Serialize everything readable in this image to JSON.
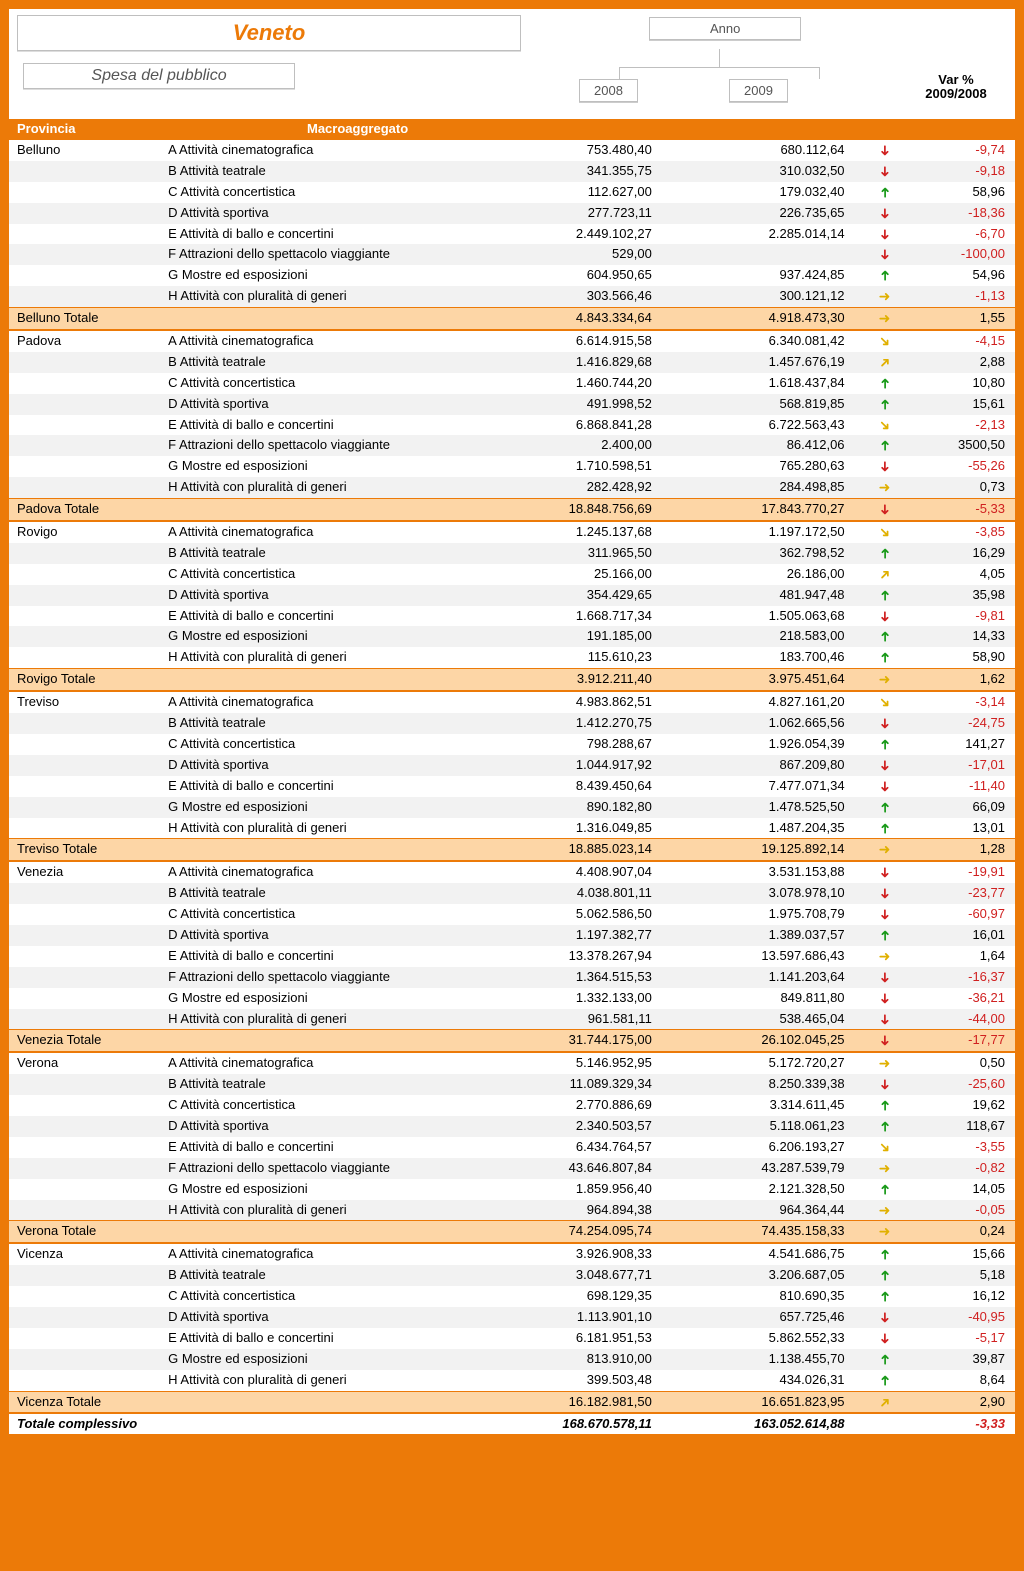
{
  "header": {
    "title": "Veneto",
    "subtitle": "Spesa del pubblico",
    "tree_root": "Anno",
    "year1": "2008",
    "year2": "2009",
    "var_header_l1": "Var %",
    "var_header_l2": "2009/2008",
    "col_provincia": "Provincia",
    "col_macro": "Macroaggregato"
  },
  "colors": {
    "accent": "#ec7a08",
    "subtotal_bg": "#fdd6a6",
    "zebra_bg": "#f2f2f2",
    "neg": "#d02020",
    "up": "#1a9a1a",
    "flat": "#e0b000"
  },
  "groups": [
    {
      "provincia": "Belluno",
      "rows": [
        {
          "macro": "A Attività cinematografica",
          "y08": "753.480,40",
          "y09": "680.112,64",
          "var": "-9,74",
          "dir": "down"
        },
        {
          "macro": "B Attività teatrale",
          "y08": "341.355,75",
          "y09": "310.032,50",
          "var": "-9,18",
          "dir": "down"
        },
        {
          "macro": "C Attività concertistica",
          "y08": "112.627,00",
          "y09": "179.032,40",
          "var": "58,96",
          "dir": "up"
        },
        {
          "macro": "D Attività sportiva",
          "y08": "277.723,11",
          "y09": "226.735,65",
          "var": "-18,36",
          "dir": "down"
        },
        {
          "macro": "E Attività di ballo e concertini",
          "y08": "2.449.102,27",
          "y09": "2.285.014,14",
          "var": "-6,70",
          "dir": "down"
        },
        {
          "macro": "F Attrazioni dello spettacolo viaggiante",
          "y08": "529,00",
          "y09": "",
          "var": "-100,00",
          "dir": "down"
        },
        {
          "macro": "G Mostre ed esposizioni",
          "y08": "604.950,65",
          "y09": "937.424,85",
          "var": "54,96",
          "dir": "up"
        },
        {
          "macro": "H Attività con pluralità di generi",
          "y08": "303.566,46",
          "y09": "300.121,12",
          "var": "-1,13",
          "dir": "flat"
        }
      ],
      "total": {
        "label": "Belluno Totale",
        "y08": "4.843.334,64",
        "y09": "4.918.473,30",
        "var": "1,55",
        "dir": "flat"
      }
    },
    {
      "provincia": "Padova",
      "rows": [
        {
          "macro": "A Attività cinematografica",
          "y08": "6.614.915,58",
          "y09": "6.340.081,42",
          "var": "-4,15",
          "dir": "downslight"
        },
        {
          "macro": "B Attività teatrale",
          "y08": "1.416.829,68",
          "y09": "1.457.676,19",
          "var": "2,88",
          "dir": "upslight"
        },
        {
          "macro": "C Attività concertistica",
          "y08": "1.460.744,20",
          "y09": "1.618.437,84",
          "var": "10,80",
          "dir": "up"
        },
        {
          "macro": "D Attività sportiva",
          "y08": "491.998,52",
          "y09": "568.819,85",
          "var": "15,61",
          "dir": "up"
        },
        {
          "macro": "E Attività di ballo e concertini",
          "y08": "6.868.841,28",
          "y09": "6.722.563,43",
          "var": "-2,13",
          "dir": "downslight"
        },
        {
          "macro": "F Attrazioni dello spettacolo viaggiante",
          "y08": "2.400,00",
          "y09": "86.412,06",
          "var": "3500,50",
          "dir": "up"
        },
        {
          "macro": "G Mostre ed esposizioni",
          "y08": "1.710.598,51",
          "y09": "765.280,63",
          "var": "-55,26",
          "dir": "down"
        },
        {
          "macro": "H Attività con pluralità di generi",
          "y08": "282.428,92",
          "y09": "284.498,85",
          "var": "0,73",
          "dir": "flat"
        }
      ],
      "total": {
        "label": "Padova Totale",
        "y08": "18.848.756,69",
        "y09": "17.843.770,27",
        "var": "-5,33",
        "dir": "down"
      }
    },
    {
      "provincia": "Rovigo",
      "rows": [
        {
          "macro": "A Attività cinematografica",
          "y08": "1.245.137,68",
          "y09": "1.197.172,50",
          "var": "-3,85",
          "dir": "downslight"
        },
        {
          "macro": "B Attività teatrale",
          "y08": "311.965,50",
          "y09": "362.798,52",
          "var": "16,29",
          "dir": "up"
        },
        {
          "macro": "C Attività concertistica",
          "y08": "25.166,00",
          "y09": "26.186,00",
          "var": "4,05",
          "dir": "upslight"
        },
        {
          "macro": "D Attività sportiva",
          "y08": "354.429,65",
          "y09": "481.947,48",
          "var": "35,98",
          "dir": "up"
        },
        {
          "macro": "E Attività di ballo e concertini",
          "y08": "1.668.717,34",
          "y09": "1.505.063,68",
          "var": "-9,81",
          "dir": "down"
        },
        {
          "macro": "G Mostre ed esposizioni",
          "y08": "191.185,00",
          "y09": "218.583,00",
          "var": "14,33",
          "dir": "up"
        },
        {
          "macro": "H Attività con pluralità di generi",
          "y08": "115.610,23",
          "y09": "183.700,46",
          "var": "58,90",
          "dir": "up"
        }
      ],
      "total": {
        "label": "Rovigo Totale",
        "y08": "3.912.211,40",
        "y09": "3.975.451,64",
        "var": "1,62",
        "dir": "flat"
      }
    },
    {
      "provincia": "Treviso",
      "rows": [
        {
          "macro": "A Attività cinematografica",
          "y08": "4.983.862,51",
          "y09": "4.827.161,20",
          "var": "-3,14",
          "dir": "downslight"
        },
        {
          "macro": "B Attività teatrale",
          "y08": "1.412.270,75",
          "y09": "1.062.665,56",
          "var": "-24,75",
          "dir": "down"
        },
        {
          "macro": "C Attività concertistica",
          "y08": "798.288,67",
          "y09": "1.926.054,39",
          "var": "141,27",
          "dir": "up"
        },
        {
          "macro": "D Attività sportiva",
          "y08": "1.044.917,92",
          "y09": "867.209,80",
          "var": "-17,01",
          "dir": "down"
        },
        {
          "macro": "E Attività di ballo e concertini",
          "y08": "8.439.450,64",
          "y09": "7.477.071,34",
          "var": "-11,40",
          "dir": "down"
        },
        {
          "macro": "G Mostre ed esposizioni",
          "y08": "890.182,80",
          "y09": "1.478.525,50",
          "var": "66,09",
          "dir": "up"
        },
        {
          "macro": "H Attività con pluralità di generi",
          "y08": "1.316.049,85",
          "y09": "1.487.204,35",
          "var": "13,01",
          "dir": "up"
        }
      ],
      "total": {
        "label": "Treviso Totale",
        "y08": "18.885.023,14",
        "y09": "19.125.892,14",
        "var": "1,28",
        "dir": "flat"
      }
    },
    {
      "provincia": "Venezia",
      "rows": [
        {
          "macro": "A Attività cinematografica",
          "y08": "4.408.907,04",
          "y09": "3.531.153,88",
          "var": "-19,91",
          "dir": "down"
        },
        {
          "macro": "B Attività teatrale",
          "y08": "4.038.801,11",
          "y09": "3.078.978,10",
          "var": "-23,77",
          "dir": "down"
        },
        {
          "macro": "C Attività concertistica",
          "y08": "5.062.586,50",
          "y09": "1.975.708,79",
          "var": "-60,97",
          "dir": "down"
        },
        {
          "macro": "D Attività sportiva",
          "y08": "1.197.382,77",
          "y09": "1.389.037,57",
          "var": "16,01",
          "dir": "up"
        },
        {
          "macro": "E Attività di ballo e concertini",
          "y08": "13.378.267,94",
          "y09": "13.597.686,43",
          "var": "1,64",
          "dir": "flat"
        },
        {
          "macro": "F Attrazioni dello spettacolo viaggiante",
          "y08": "1.364.515,53",
          "y09": "1.141.203,64",
          "var": "-16,37",
          "dir": "down"
        },
        {
          "macro": "G Mostre ed esposizioni",
          "y08": "1.332.133,00",
          "y09": "849.811,80",
          "var": "-36,21",
          "dir": "down"
        },
        {
          "macro": "H Attività con pluralità di generi",
          "y08": "961.581,11",
          "y09": "538.465,04",
          "var": "-44,00",
          "dir": "down"
        }
      ],
      "total": {
        "label": "Venezia Totale",
        "y08": "31.744.175,00",
        "y09": "26.102.045,25",
        "var": "-17,77",
        "dir": "down"
      }
    },
    {
      "provincia": "Verona",
      "rows": [
        {
          "macro": "A Attività cinematografica",
          "y08": "5.146.952,95",
          "y09": "5.172.720,27",
          "var": "0,50",
          "dir": "flat"
        },
        {
          "macro": "B Attività teatrale",
          "y08": "11.089.329,34",
          "y09": "8.250.339,38",
          "var": "-25,60",
          "dir": "down"
        },
        {
          "macro": "C Attività concertistica",
          "y08": "2.770.886,69",
          "y09": "3.314.611,45",
          "var": "19,62",
          "dir": "up"
        },
        {
          "macro": "D Attività sportiva",
          "y08": "2.340.503,57",
          "y09": "5.118.061,23",
          "var": "118,67",
          "dir": "up"
        },
        {
          "macro": "E Attività di ballo e concertini",
          "y08": "6.434.764,57",
          "y09": "6.206.193,27",
          "var": "-3,55",
          "dir": "downslight"
        },
        {
          "macro": "F Attrazioni dello spettacolo viaggiante",
          "y08": "43.646.807,84",
          "y09": "43.287.539,79",
          "var": "-0,82",
          "dir": "flat"
        },
        {
          "macro": "G Mostre ed esposizioni",
          "y08": "1.859.956,40",
          "y09": "2.121.328,50",
          "var": "14,05",
          "dir": "up"
        },
        {
          "macro": "H Attività con pluralità di generi",
          "y08": "964.894,38",
          "y09": "964.364,44",
          "var": "-0,05",
          "dir": "flat"
        }
      ],
      "total": {
        "label": "Verona Totale",
        "y08": "74.254.095,74",
        "y09": "74.435.158,33",
        "var": "0,24",
        "dir": "flat"
      }
    },
    {
      "provincia": "Vicenza",
      "rows": [
        {
          "macro": "A Attività cinematografica",
          "y08": "3.926.908,33",
          "y09": "4.541.686,75",
          "var": "15,66",
          "dir": "up"
        },
        {
          "macro": "B Attività teatrale",
          "y08": "3.048.677,71",
          "y09": "3.206.687,05",
          "var": "5,18",
          "dir": "up"
        },
        {
          "macro": "C Attività concertistica",
          "y08": "698.129,35",
          "y09": "810.690,35",
          "var": "16,12",
          "dir": "up"
        },
        {
          "macro": "D Attività sportiva",
          "y08": "1.113.901,10",
          "y09": "657.725,46",
          "var": "-40,95",
          "dir": "down"
        },
        {
          "macro": "E Attività di ballo e concertini",
          "y08": "6.181.951,53",
          "y09": "5.862.552,33",
          "var": "-5,17",
          "dir": "down"
        },
        {
          "macro": "G Mostre ed esposizioni",
          "y08": "813.910,00",
          "y09": "1.138.455,70",
          "var": "39,87",
          "dir": "up"
        },
        {
          "macro": "H Attività con pluralità di generi",
          "y08": "399.503,48",
          "y09": "434.026,31",
          "var": "8,64",
          "dir": "up"
        }
      ],
      "total": {
        "label": "Vicenza Totale",
        "y08": "16.182.981,50",
        "y09": "16.651.823,95",
        "var": "2,90",
        "dir": "upslight"
      }
    }
  ],
  "grand_total": {
    "label": "Totale complessivo",
    "y08": "168.670.578,11",
    "y09": "163.052.614,88",
    "var": "-3,33"
  }
}
